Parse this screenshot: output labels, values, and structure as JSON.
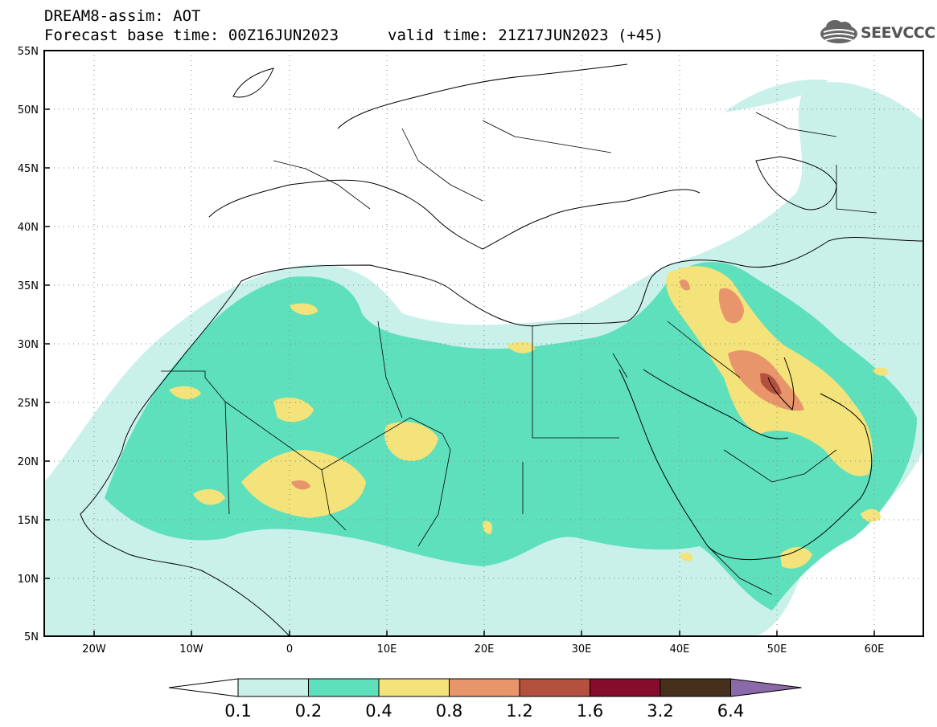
{
  "header": {
    "line1": "DREAM8-assim: AOT",
    "base_time": "Forecast base time: 00Z16JUN2023",
    "valid_time": "valid time: 21Z17JUN2023 (+45)"
  },
  "logo": {
    "text": "SEEVCCC",
    "icon": "cloud-icon"
  },
  "axes": {
    "lat_labels": [
      "55N",
      "50N",
      "45N",
      "40N",
      "35N",
      "30N",
      "25N",
      "20N",
      "15N",
      "10N",
      "5N"
    ],
    "lon_labels": [
      "20W",
      "10W",
      "0",
      "10E",
      "20E",
      "30E",
      "40E",
      "50E",
      "60E"
    ]
  },
  "colorbar": {
    "labels": [
      "0.1",
      "0.2",
      "0.4",
      "0.8",
      "1.2",
      "1.6",
      "3.2",
      "6.4"
    ],
    "colors": [
      "#c9f1ea",
      "#5fe0bd",
      "#f4e37a",
      "#e8956b",
      "#b4503e",
      "#850c2a",
      "#46301c",
      "#8a6aa8"
    ]
  },
  "chart_data": {
    "type": "heatmap",
    "title": "DREAM8-assim: AOT",
    "xlim": [
      -25,
      65
    ],
    "ylim": [
      5,
      55
    ],
    "x_ticks": [
      -20,
      -10,
      0,
      10,
      20,
      30,
      40,
      50,
      60
    ],
    "y_ticks": [
      5,
      10,
      15,
      20,
      25,
      30,
      35,
      40,
      45,
      50,
      55
    ],
    "levels": [
      0.1,
      0.2,
      0.4,
      0.8,
      1.2,
      1.6,
      3.2,
      6.4
    ],
    "grid": true
  }
}
